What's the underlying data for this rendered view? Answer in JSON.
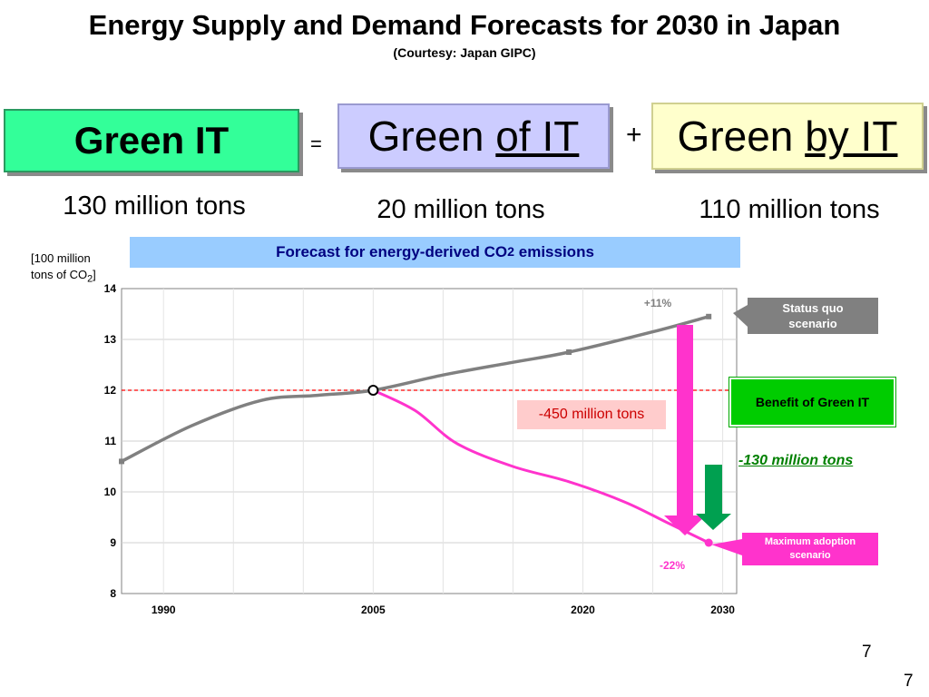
{
  "title": "Energy Supply and Demand Forecasts for 2030 in Japan",
  "subtitle": "(Courtesy: Japan GIPC)",
  "equation": {
    "green_it": "Green IT",
    "equals": "=",
    "green_of_it_prefix": "Green ",
    "green_of_it_suffix": "of IT",
    "plus": "+",
    "green_by_it_prefix": "Green ",
    "green_by_it_suffix": "by IT",
    "tons_green_it": "130 million tons",
    "tons_green_of_it": "20 million tons",
    "tons_green_by_it": "110 million tons"
  },
  "colors": {
    "green_it_box": "#33ff99",
    "green_of_it_box": "#ccccff",
    "green_by_it_box": "#ffffcc",
    "status_quo_line": "#808080",
    "max_adoption_line": "#ff33cc",
    "benefit_arrow": "#00a050",
    "baseline": "#ff0000"
  },
  "chart_data": {
    "type": "line",
    "title_prefix": "Forecast for energy-derived CO",
    "title_sub": "2",
    "title_suffix": " emissions",
    "ylabel_line1": "[100 million",
    "ylabel_line2_prefix": "tons of CO",
    "ylabel_line2_sub": "2",
    "ylabel_line2_suffix": "]",
    "ylim": [
      8,
      14
    ],
    "yticks": [
      "14",
      "13",
      "12",
      "11",
      "10",
      "9",
      "8"
    ],
    "xlim": [
      1987,
      2031
    ],
    "xticks": [
      {
        "value": 1990,
        "label": "1990"
      },
      {
        "value": 2005,
        "label": "2005"
      },
      {
        "value": 2020,
        "label": "2020"
      },
      {
        "value": 2030,
        "label": "2030"
      }
    ],
    "grid": true,
    "baseline_value": 12,
    "series": [
      {
        "name": "Status quo scenario",
        "color": "#808080",
        "points": [
          [
            1987,
            10.6
          ],
          [
            1992,
            11.3
          ],
          [
            1997,
            11.8
          ],
          [
            2001,
            11.9
          ],
          [
            2005,
            12.0
          ],
          [
            2010,
            12.3
          ],
          [
            2015,
            12.55
          ],
          [
            2019,
            12.75
          ],
          [
            2025,
            13.15
          ],
          [
            2029,
            13.45
          ]
        ]
      },
      {
        "name": "Maximum adoption scenario",
        "color": "#ff33cc",
        "points": [
          [
            2005,
            12.0
          ],
          [
            2008,
            11.6
          ],
          [
            2011,
            10.95
          ],
          [
            2015,
            10.5
          ],
          [
            2019,
            10.2
          ],
          [
            2023,
            9.8
          ],
          [
            2026,
            9.4
          ],
          [
            2029,
            9.0
          ]
        ]
      }
    ],
    "annotations": {
      "plus_11": "+11%",
      "minus_22": "-22%",
      "minus_450": "-450 million tons",
      "status_quo_label_1": "Status quo",
      "status_quo_label_2": "scenario",
      "benefit_label": "Benefit of Green IT",
      "benefit_value": "-130 million tons",
      "max_label_1": "Maximum adoption",
      "max_label_2": "scenario"
    }
  },
  "page_number_1": "7",
  "page_number_2": "7"
}
